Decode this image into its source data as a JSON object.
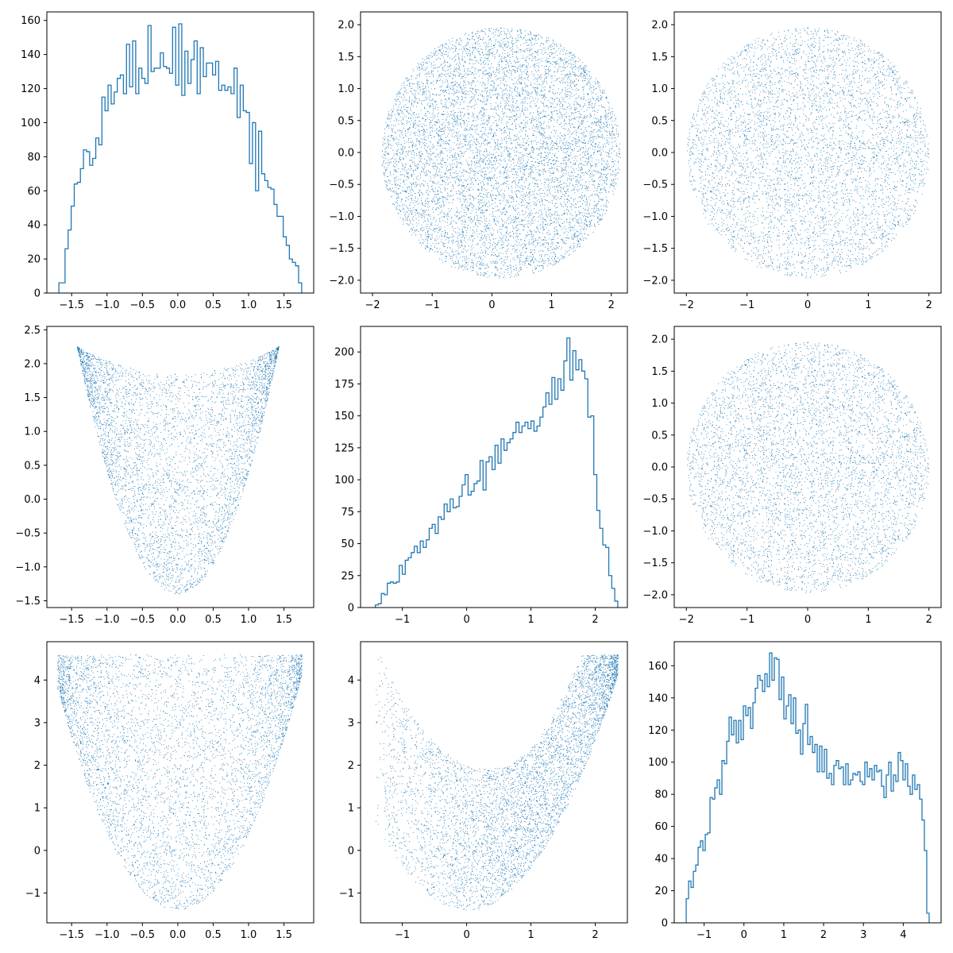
{
  "colors": {
    "series": "#1f77b4",
    "frame": "#000000",
    "background": "#ffffff"
  },
  "layout": {
    "rows": 3,
    "cols": 3,
    "grid": false,
    "legend": "none"
  },
  "chart_data": [
    {
      "type": "histogram-step",
      "xlim": [
        -1.85,
        1.92
      ],
      "ylim": [
        0,
        165
      ],
      "xticks": [
        -1.5,
        -1.0,
        -0.5,
        0.0,
        0.5,
        1.0,
        1.5
      ],
      "xtick_labels": [
        "−1.5",
        "−1.0",
        "−0.5",
        "0.0",
        "0.5",
        "1.0",
        "1.5"
      ],
      "yticks": [
        0,
        20,
        40,
        60,
        80,
        100,
        120,
        140,
        160
      ],
      "ytick_labels": [
        "0",
        "20",
        "40",
        "60",
        "80",
        "100",
        "120",
        "140",
        "160"
      ],
      "bin_start": -1.68,
      "bin_end": 1.75,
      "counts": [
        6,
        6,
        26,
        37,
        51,
        64,
        65,
        73,
        84,
        83,
        75,
        79,
        91,
        87,
        115,
        107,
        122,
        111,
        118,
        126,
        128,
        117,
        146,
        121,
        148,
        117,
        132,
        126,
        123,
        157,
        130,
        132,
        132,
        141,
        133,
        132,
        129,
        156,
        122,
        158,
        116,
        142,
        123,
        137,
        148,
        117,
        144,
        127,
        135,
        135,
        128,
        136,
        119,
        122,
        119,
        121,
        117,
        132,
        103,
        122,
        107,
        106,
        76,
        100,
        60,
        95,
        70,
        66,
        62,
        61,
        52,
        45,
        45,
        33,
        28,
        20,
        18,
        16,
        6
      ]
    },
    {
      "type": "scatter",
      "xlim": [
        -2.2,
        2.27
      ],
      "ylim": [
        -2.2,
        2.2
      ],
      "xticks": [
        -2,
        -1,
        0,
        1,
        2
      ],
      "xtick_labels": [
        "−2",
        "−1",
        "0",
        "1",
        "2"
      ],
      "yticks": [
        -2.0,
        -1.5,
        -1.0,
        -0.5,
        0.0,
        0.5,
        1.0,
        1.5,
        2.0
      ],
      "ytick_labels": [
        "−2.0",
        "−1.5",
        "−1.0",
        "−0.5",
        "0.0",
        "0.5",
        "1.0",
        "1.5",
        "2.0"
      ],
      "point_count": 9000,
      "shape": "disk",
      "center": [
        0.15,
        0.0
      ],
      "radius": 2.0
    },
    {
      "type": "scatter",
      "xlim": [
        -2.2,
        2.2
      ],
      "ylim": [
        -2.2,
        2.2
      ],
      "xticks": [
        -2,
        -1,
        0,
        1,
        2
      ],
      "xtick_labels": [
        "−2",
        "−1",
        "0",
        "1",
        "2"
      ],
      "yticks": [
        -2.0,
        -1.5,
        -1.0,
        -0.5,
        0.0,
        0.5,
        1.0,
        1.5,
        2.0
      ],
      "ytick_labels": [
        "−2.0",
        "−1.5",
        "−1.0",
        "−0.5",
        "0.0",
        "0.5",
        "1.0",
        "1.5",
        "2.0"
      ],
      "point_count": 9000,
      "shape": "disk",
      "center": [
        0.0,
        0.0
      ],
      "radius": 2.0
    },
    {
      "type": "scatter",
      "xlim": [
        -1.85,
        1.92
      ],
      "ylim": [
        -1.6,
        2.55
      ],
      "xticks": [
        -1.5,
        -1.0,
        -0.5,
        0.0,
        0.5,
        1.0,
        1.5
      ],
      "xtick_labels": [
        "−1.5",
        "−1.0",
        "−0.5",
        "0.0",
        "0.5",
        "1.0",
        "1.5"
      ],
      "yticks": [
        -1.5,
        -1.0,
        -0.5,
        0.0,
        0.5,
        1.0,
        1.5,
        2.0,
        2.5
      ],
      "ytick_labels": [
        "−1.5",
        "−1.0",
        "−0.5",
        "0.0",
        "0.5",
        "1.0",
        "1.5",
        "2.0",
        "2.5"
      ],
      "point_count": 9000,
      "shape": "parabola-band",
      "x_range": [
        -1.7,
        1.75
      ],
      "lower": {
        "a": 1.8,
        "c": -1.4
      },
      "upper": {
        "a": 0.2,
        "c": 1.85
      }
    },
    {
      "type": "histogram-step",
      "xlim": [
        -1.65,
        2.5
      ],
      "ylim": [
        0,
        220
      ],
      "xticks": [
        -1,
        0,
        1,
        2
      ],
      "xtick_labels": [
        "−1",
        "0",
        "1",
        "2"
      ],
      "yticks": [
        0,
        25,
        50,
        75,
        100,
        125,
        150,
        175,
        200
      ],
      "ytick_labels": [
        "0",
        "25",
        "50",
        "75",
        "100",
        "125",
        "150",
        "175",
        "200"
      ],
      "bin_start": -1.42,
      "bin_end": 2.35,
      "counts": [
        2,
        3,
        11,
        10,
        19,
        20,
        19,
        20,
        33,
        26,
        37,
        39,
        43,
        48,
        43,
        52,
        47,
        53,
        62,
        65,
        58,
        71,
        69,
        81,
        75,
        85,
        78,
        79,
        87,
        96,
        104,
        88,
        91,
        97,
        99,
        115,
        92,
        114,
        118,
        108,
        127,
        113,
        132,
        123,
        129,
        132,
        137,
        145,
        137,
        142,
        145,
        140,
        146,
        138,
        142,
        149,
        157,
        168,
        159,
        180,
        163,
        179,
        170,
        193,
        211,
        178,
        201,
        186,
        194,
        185,
        179,
        149,
        150,
        104,
        76,
        62,
        49,
        47,
        25,
        15,
        5
      ]
    },
    {
      "type": "scatter",
      "xlim": [
        -2.2,
        2.2
      ],
      "ylim": [
        -2.2,
        2.2
      ],
      "xticks": [
        -2,
        -1,
        0,
        1,
        2
      ],
      "xtick_labels": [
        "−2",
        "−1",
        "0",
        "1",
        "2"
      ],
      "yticks": [
        -2.0,
        -1.5,
        -1.0,
        -0.5,
        0.0,
        0.5,
        1.0,
        1.5,
        2.0
      ],
      "ytick_labels": [
        "−2.0",
        "−1.5",
        "−1.0",
        "−0.5",
        "0.0",
        "0.5",
        "1.0",
        "1.5",
        "2.0"
      ],
      "point_count": 9000,
      "shape": "disk",
      "center": [
        0.0,
        0.0
      ],
      "radius": 2.0
    },
    {
      "type": "scatter",
      "xlim": [
        -1.85,
        1.92
      ],
      "ylim": [
        -1.7,
        4.9
      ],
      "xticks": [
        -1.5,
        -1.0,
        -0.5,
        0.0,
        0.5,
        1.0,
        1.5
      ],
      "xtick_labels": [
        "−1.5",
        "−1.0",
        "−0.5",
        "0.0",
        "0.5",
        "1.0",
        "1.5"
      ],
      "yticks": [
        -1,
        0,
        1,
        2,
        3,
        4
      ],
      "ytick_labels": [
        "−1",
        "0",
        "1",
        "2",
        "3",
        "4"
      ],
      "point_count": 9000,
      "shape": "parabola-band",
      "x_range": [
        -1.7,
        1.75
      ],
      "lower": {
        "a": 1.8,
        "c": -1.4
      },
      "upper": {
        "a": 0.0,
        "c": 4.6
      }
    },
    {
      "type": "scatter",
      "xlim": [
        -1.65,
        2.5
      ],
      "ylim": [
        -1.7,
        4.9
      ],
      "xticks": [
        -1,
        0,
        1,
        2
      ],
      "xtick_labels": [
        "−1",
        "0",
        "1",
        "2"
      ],
      "yticks": [
        -1,
        0,
        1,
        2,
        3,
        4
      ],
      "ytick_labels": [
        "−1",
        "0",
        "1",
        "2",
        "3",
        "4"
      ],
      "point_count": 9000,
      "shape": "banana",
      "x_range": [
        -1.42,
        2.35
      ]
    },
    {
      "type": "histogram-step",
      "xlim": [
        -1.75,
        4.95
      ],
      "ylim": [
        0,
        175
      ],
      "xticks": [
        -1,
        0,
        1,
        2,
        3,
        4
      ],
      "xtick_labels": [
        "−1",
        "0",
        "1",
        "2",
        "3",
        "4"
      ],
      "yticks": [
        0,
        20,
        40,
        60,
        80,
        100,
        120,
        140,
        160
      ],
      "ytick_labels": [
        "0",
        "20",
        "40",
        "60",
        "80",
        "100",
        "120",
        "140",
        "160"
      ],
      "bin_start": -1.45,
      "bin_end": 4.65,
      "counts": [
        15,
        26,
        22,
        32,
        36,
        47,
        51,
        45,
        55,
        56,
        78,
        77,
        84,
        89,
        80,
        101,
        99,
        113,
        128,
        117,
        126,
        112,
        126,
        114,
        135,
        129,
        134,
        121,
        137,
        146,
        154,
        151,
        144,
        155,
        147,
        168,
        151,
        165,
        164,
        139,
        153,
        127,
        135,
        142,
        124,
        140,
        118,
        120,
        105,
        124,
        136,
        111,
        116,
        106,
        111,
        94,
        110,
        94,
        108,
        90,
        93,
        86,
        98,
        101,
        96,
        97,
        86,
        99,
        86,
        89,
        93,
        92,
        94,
        88,
        86,
        100,
        91,
        96,
        89,
        98,
        94,
        95,
        85,
        78,
        92,
        100,
        82,
        92,
        88,
        106,
        101,
        89,
        99,
        85,
        80,
        92,
        83,
        86,
        77,
        64,
        45,
        6
      ]
    }
  ]
}
